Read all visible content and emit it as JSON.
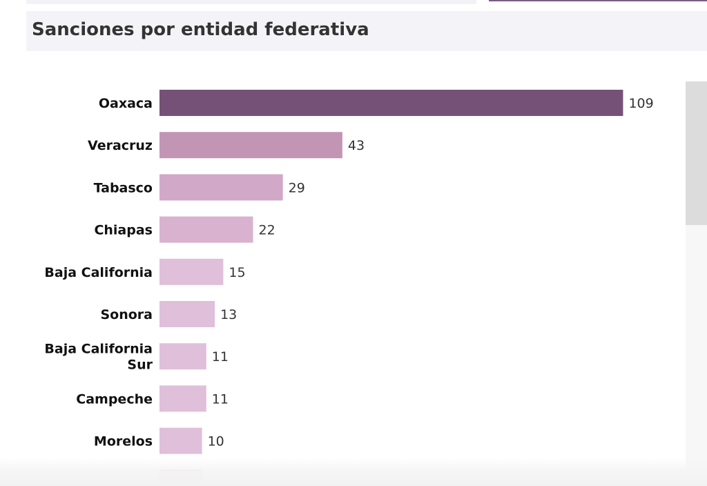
{
  "header": {
    "title": "Sanciones por entidad federativa"
  },
  "colors": {
    "max_bar": "#765177",
    "bar_scale": [
      "#c295b5",
      "#d1a8c8",
      "#d9b2cf",
      "#e0bfda"
    ],
    "label_text": "#111111",
    "value_text": "#333333"
  },
  "chart_data": {
    "type": "bar",
    "orientation": "horizontal",
    "categories": [
      "Oaxaca",
      "Veracruz",
      "Tabasco",
      "Chiapas",
      "Baja California",
      "Sonora",
      "Baja California Sur",
      "Campeche",
      "Morelos"
    ],
    "category_lines": [
      [
        "Oaxaca"
      ],
      [
        "Veracruz"
      ],
      [
        "Tabasco"
      ],
      [
        "Chiapas"
      ],
      [
        "Baja California"
      ],
      [
        "Sonora"
      ],
      [
        "Baja California",
        "Sur"
      ],
      [
        "Campeche"
      ],
      [
        "Morelos"
      ]
    ],
    "values": [
      109,
      43,
      29,
      22,
      15,
      13,
      11,
      11,
      10
    ],
    "value_labels": [
      "109",
      "43",
      "29",
      "22",
      "15",
      "13",
      "11",
      "11",
      "10"
    ],
    "title": "Sanciones por entidad federativa",
    "xlabel": "",
    "ylabel": "",
    "xlim": [
      0,
      120
    ],
    "grid": false,
    "legend": "none"
  }
}
